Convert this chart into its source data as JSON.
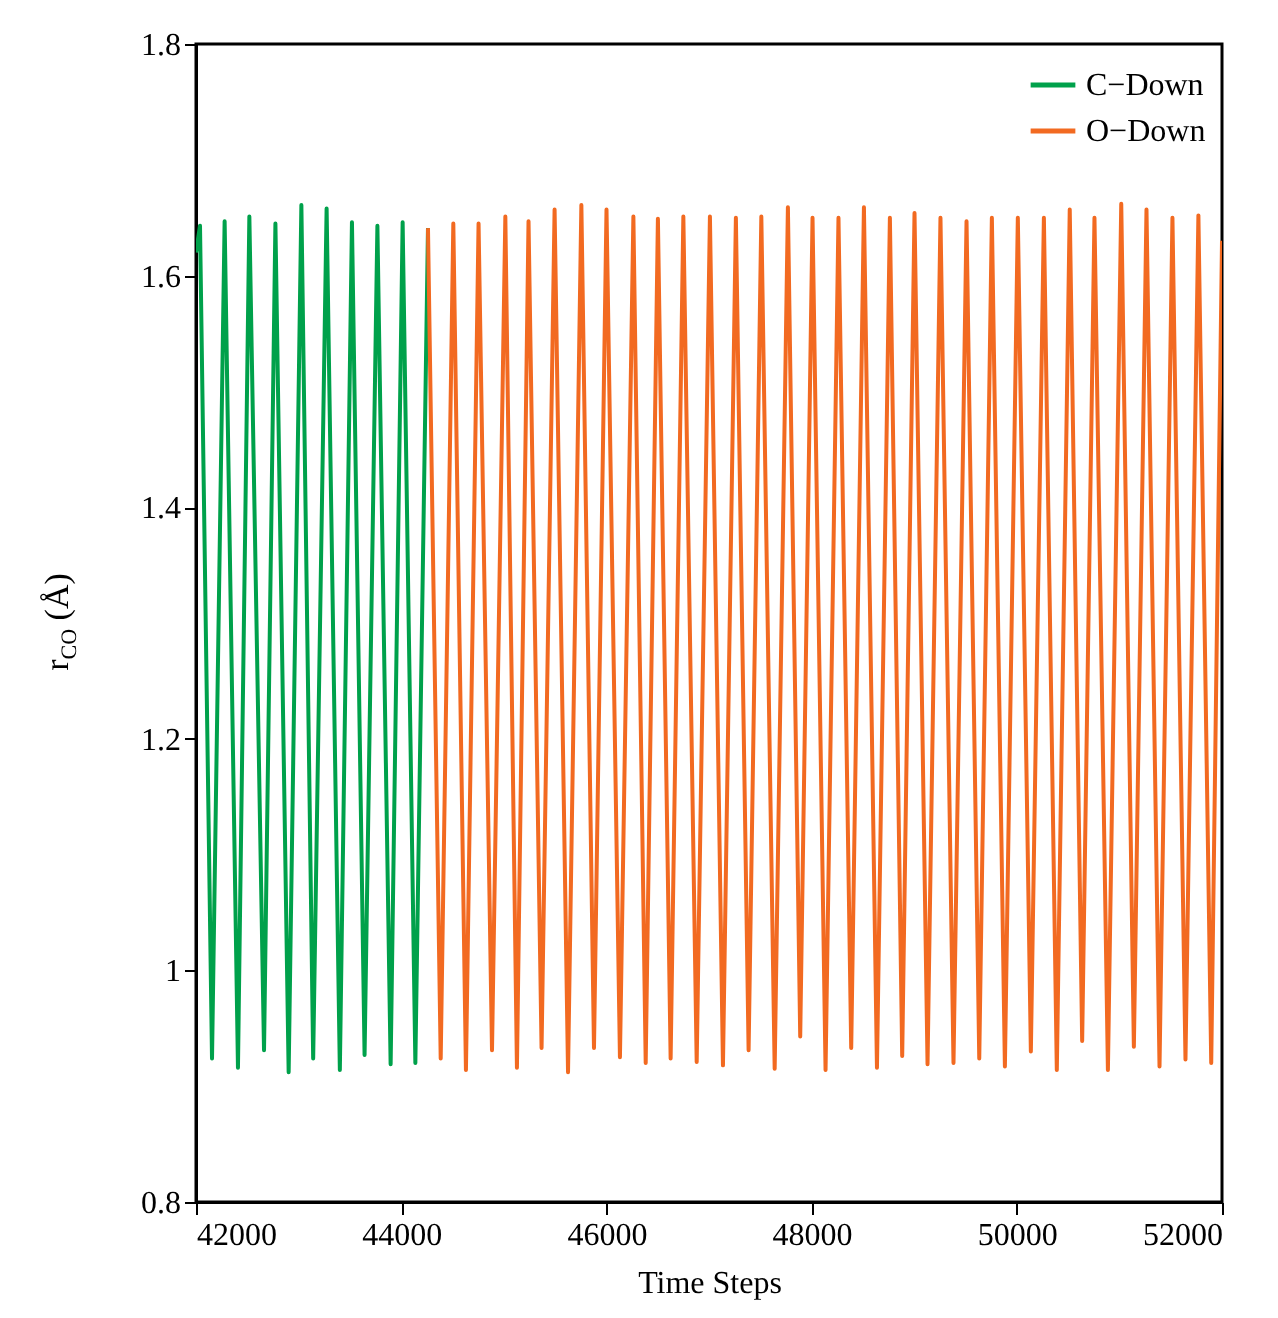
{
  "chart_data": {
    "type": "line",
    "xlabel": "Time Steps",
    "ylabel": "r$_{CO}$ (Å)",
    "xlim": [
      42000,
      52000
    ],
    "xticks": [
      42000,
      44000,
      46000,
      48000,
      50000,
      52000
    ],
    "ylim": [
      0.8,
      1.8
    ],
    "yticks": [
      0.8,
      1,
      1.2,
      1.4,
      1.6,
      1.8
    ],
    "grid": false,
    "legend": "top right",
    "series": [
      {
        "name": "C−Down",
        "color": "#00a14b",
        "x": [
          42000,
          42039,
          42156,
          42279,
          42409,
          42520,
          42663,
          42774,
          42903,
          43027,
          43142,
          43273,
          43402,
          43520,
          43643,
          43768,
          43897,
          44014,
          44138,
          44261
        ],
        "values": [
          1.62,
          1.643,
          0.924,
          1.647,
          0.916,
          1.651,
          0.931,
          1.645,
          0.912,
          1.661,
          0.924,
          1.658,
          0.914,
          1.646,
          0.927,
          1.643,
          0.919,
          1.646,
          0.92,
          1.641
        ]
      },
      {
        "name": "O−Down",
        "color": "#f26a21",
        "x": [
          44261,
          44385,
          44508,
          44631,
          44754,
          44885,
          45015,
          45128,
          45241,
          45368,
          45495,
          45626,
          45756,
          45879,
          46001,
          46132,
          46263,
          46383,
          46502,
          46626,
          46750,
          46880,
          47009,
          47136,
          47262,
          47386,
          47510,
          47640,
          47769,
          47889,
          48009,
          48136,
          48262,
          48386,
          48510,
          48637,
          48763,
          48883,
          49003,
          49130,
          49256,
          49383,
          49510,
          49634,
          49757,
          49884,
          50010,
          50137,
          50264,
          50390,
          50516,
          50637,
          50757,
          50888,
          51018,
          51141,
          51264,
          51391,
          51517,
          51644,
          51770,
          51895,
          52000
        ],
        "values": [
          1.641,
          0.924,
          1.645,
          0.914,
          1.645,
          0.931,
          1.651,
          0.916,
          1.647,
          0.933,
          1.657,
          0.912,
          1.661,
          0.933,
          1.657,
          0.925,
          1.651,
          0.92,
          1.649,
          0.924,
          1.651,
          0.921,
          1.651,
          0.918,
          1.65,
          0.931,
          1.651,
          0.915,
          1.659,
          0.943,
          1.65,
          0.914,
          1.65,
          0.933,
          1.659,
          0.916,
          1.65,
          0.926,
          1.654,
          0.919,
          1.65,
          0.92,
          1.647,
          0.924,
          1.65,
          0.917,
          1.65,
          0.93,
          1.65,
          0.914,
          1.657,
          0.939,
          1.65,
          0.914,
          1.662,
          0.934,
          1.657,
          0.917,
          1.65,
          0.923,
          1.652,
          0.92,
          1.63
        ]
      }
    ]
  }
}
